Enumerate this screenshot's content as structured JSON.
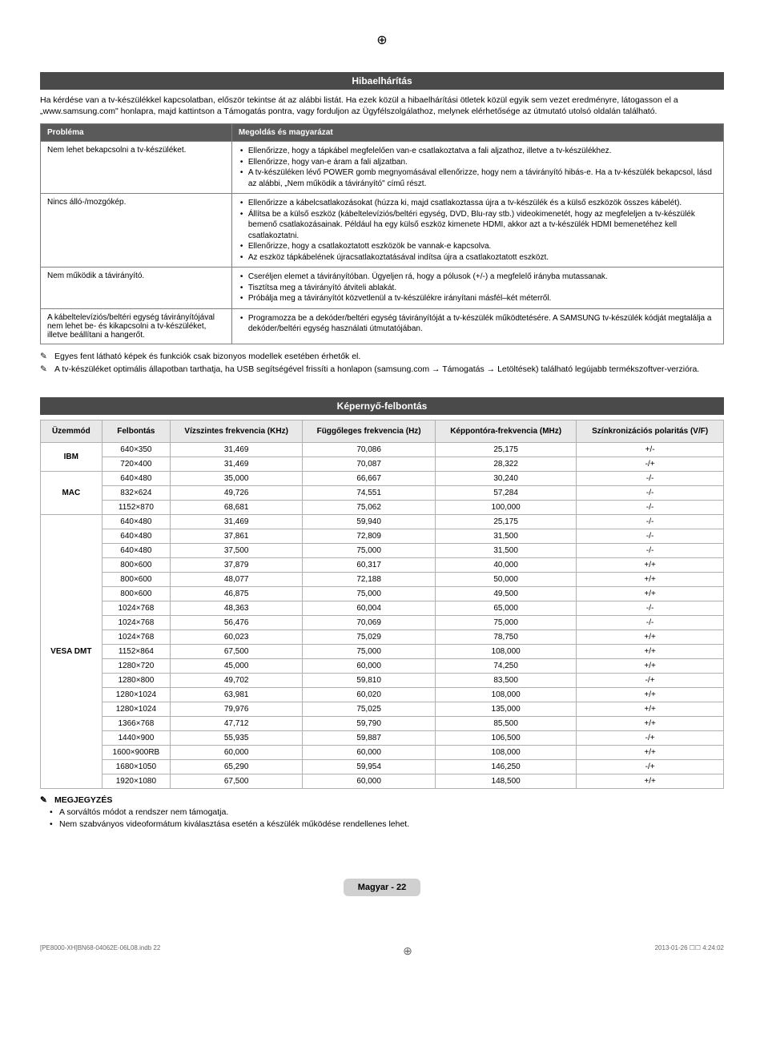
{
  "page": {
    "printMarkChar": "⊕",
    "footerTag": "Magyar - 22",
    "docLeft": "[PE8000-XH]BN68-04062E-06L08.indb   22",
    "docRight": "2013-01-26   ☐☐ 4:24:02"
  },
  "troubleshoot": {
    "header": "Hibaelhárítás",
    "intro": "Ha kérdése van a tv-készülékkel kapcsolatban, először tekintse át az alábbi listát. Ha ezek közül a hibaelhárítási ötletek közül egyik sem vezet eredményre, látogasson el a „www.samsung.com\" honlapra, majd kattintson a Támogatás pontra, vagy forduljon az Ügyfélszolgálathoz, melynek elérhetősége az útmutató utolsó oldalán található.",
    "col1": "Probléma",
    "col2": "Megoldás és magyarázat",
    "rows": [
      {
        "problem": "Nem lehet bekapcsolni a tv-készüléket.",
        "items": [
          "Ellenőrizze, hogy a tápkábel megfelelően van-e csatlakoztatva a fali aljzathoz, illetve a tv-készülékhez.",
          "Ellenőrizze, hogy van-e áram a fali aljzatban.",
          "A tv-készüléken lévő POWER gomb megnyomásával ellenőrizze, hogy nem a távirányító hibás-e. Ha a tv-készülék bekapcsol, lásd az alábbi, „Nem működik a távirányító\" című részt."
        ]
      },
      {
        "problem": "Nincs álló-/mozgókép.",
        "items": [
          "Ellenőrizze a kábelcsatlakozásokat (húzza ki, majd csatlakoztassa újra a tv-készülék és a külső eszközök összes kábelét).",
          "Állítsa be a külső eszköz (kábeltelevíziós/beltéri egység, DVD, Blu-ray stb.) videokimenetét, hogy az megfeleljen a tv-készülék bemenő csatlakozásainak. Például ha egy külső eszköz kimenete HDMI, akkor azt a tv-készülék HDMI bemenetéhez kell csatlakoztatni.",
          "Ellenőrizze, hogy a csatlakoztatott eszközök be vannak-e kapcsolva.",
          "Az eszköz tápkábelének újracsatlakoztatásával indítsa újra a csatlakoztatott eszközt."
        ]
      },
      {
        "problem": "Nem működik a távirányító.",
        "items": [
          "Cseréljen elemet a távirányítóban. Ügyeljen rá, hogy a pólusok (+/-) a megfelelő irányba mutassanak.",
          "Tisztítsa meg a távirányító átviteli ablakát.",
          "Próbálja meg a távirányítót közvetlenül a tv-készülékre irányítani másfél–két méterről."
        ]
      },
      {
        "problem": "A kábeltelevíziós/beltéri egység távirányítójával nem lehet be- és kikapcsolni a tv-készüléket, illetve beállítani a hangerőt.",
        "items": [
          "Programozza be a dekóder/beltéri egység távirányítóját a tv-készülék működtetésére. A SAMSUNG tv-készülék kódját megtalálja a dekóder/beltéri egység használati útmutatójában."
        ]
      }
    ],
    "notes": [
      "Egyes fent látható képek és funkciók csak bizonyos modellek esetében érhetők el.",
      "A tv-készüléket optimális állapotban tarthatja, ha USB segítségével frissíti a honlapon (samsung.com → Támogatás → Letöltések) található legújabb termékszoftver-verzióra."
    ]
  },
  "resolution": {
    "header": "Képernyő-felbontás",
    "columns": [
      "Üzemmód",
      "Felbontás",
      "Vízszintes frekvencia (KHz)",
      "Függőleges frekvencia (Hz)",
      "Képpontóra-frekvencia (MHz)",
      "Színkronizációs polaritás (V/F)"
    ],
    "groups": [
      {
        "mode": "IBM",
        "rows": [
          [
            "640×350",
            "31,469",
            "70,086",
            "25,175",
            "+/-"
          ],
          [
            "720×400",
            "31,469",
            "70,087",
            "28,322",
            "-/+"
          ]
        ]
      },
      {
        "mode": "MAC",
        "rows": [
          [
            "640×480",
            "35,000",
            "66,667",
            "30,240",
            "-/-"
          ],
          [
            "832×624",
            "49,726",
            "74,551",
            "57,284",
            "-/-"
          ],
          [
            "1152×870",
            "68,681",
            "75,062",
            "100,000",
            "-/-"
          ]
        ]
      },
      {
        "mode": "VESA DMT",
        "rows": [
          [
            "640×480",
            "31,469",
            "59,940",
            "25,175",
            "-/-"
          ],
          [
            "640×480",
            "37,861",
            "72,809",
            "31,500",
            "-/-"
          ],
          [
            "640×480",
            "37,500",
            "75,000",
            "31,500",
            "-/-"
          ],
          [
            "800×600",
            "37,879",
            "60,317",
            "40,000",
            "+/+"
          ],
          [
            "800×600",
            "48,077",
            "72,188",
            "50,000",
            "+/+"
          ],
          [
            "800×600",
            "46,875",
            "75,000",
            "49,500",
            "+/+"
          ],
          [
            "1024×768",
            "48,363",
            "60,004",
            "65,000",
            "-/-"
          ],
          [
            "1024×768",
            "56,476",
            "70,069",
            "75,000",
            "-/-"
          ],
          [
            "1024×768",
            "60,023",
            "75,029",
            "78,750",
            "+/+"
          ],
          [
            "1152×864",
            "67,500",
            "75,000",
            "108,000",
            "+/+"
          ],
          [
            "1280×720",
            "45,000",
            "60,000",
            "74,250",
            "+/+"
          ],
          [
            "1280×800",
            "49,702",
            "59,810",
            "83,500",
            "-/+"
          ],
          [
            "1280×1024",
            "63,981",
            "60,020",
            "108,000",
            "+/+"
          ],
          [
            "1280×1024",
            "79,976",
            "75,025",
            "135,000",
            "+/+"
          ],
          [
            "1366×768",
            "47,712",
            "59,790",
            "85,500",
            "+/+"
          ],
          [
            "1440×900",
            "55,935",
            "59,887",
            "106,500",
            "-/+"
          ],
          [
            "1600×900RB",
            "60,000",
            "60,000",
            "108,000",
            "+/+"
          ],
          [
            "1680×1050",
            "65,290",
            "59,954",
            "146,250",
            "-/+"
          ],
          [
            "1920×1080",
            "67,500",
            "60,000",
            "148,500",
            "+/+"
          ]
        ]
      }
    ],
    "noteLabel": "MEGJEGYZÉS",
    "noteItems": [
      "A sorváltós módot a rendszer nem támogatja.",
      "Nem szabványos videoformátum kiválasztása esetén a készülék működése rendellenes lehet."
    ]
  }
}
